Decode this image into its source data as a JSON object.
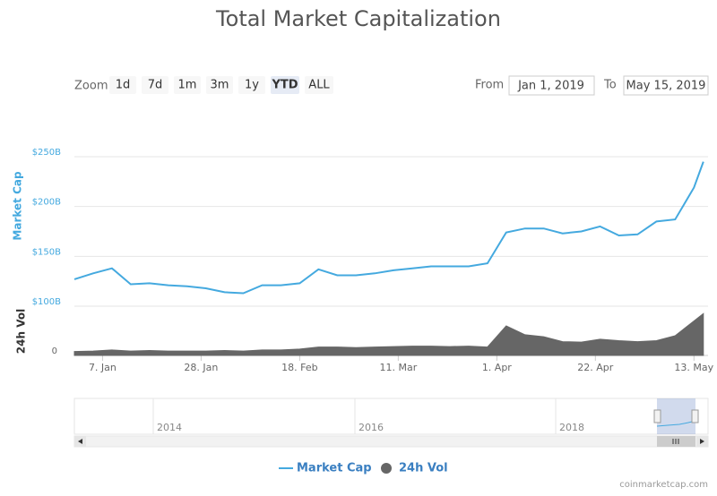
{
  "chart_data": {
    "type": "line",
    "title": "Total Market Capitalization",
    "range_selector": {
      "label": "Zoom",
      "buttons": [
        "1d",
        "7d",
        "1m",
        "3m",
        "1y",
        "YTD",
        "ALL"
      ],
      "selected": 5,
      "from_label": "From",
      "from": "Jan 1, 2019",
      "to_label": "To",
      "to": "May 15, 2019"
    },
    "y_label": "Market Cap",
    "y2_label": "24h Vol",
    "x": [
      "2019-01-01",
      "2019-01-05",
      "2019-01-09",
      "2019-01-13",
      "2019-01-17",
      "2019-01-21",
      "2019-01-25",
      "2019-01-29",
      "2019-02-02",
      "2019-02-06",
      "2019-02-10",
      "2019-02-14",
      "2019-02-18",
      "2019-02-22",
      "2019-02-26",
      "2019-03-02",
      "2019-03-06",
      "2019-03-10",
      "2019-03-14",
      "2019-03-18",
      "2019-03-22",
      "2019-03-26",
      "2019-03-30",
      "2019-04-03",
      "2019-04-07",
      "2019-04-11",
      "2019-04-15",
      "2019-04-19",
      "2019-04-23",
      "2019-04-27",
      "2019-05-01",
      "2019-05-05",
      "2019-05-09",
      "2019-05-13",
      "2019-05-15"
    ],
    "xlim": [
      "2019-01-01",
      "2019-05-16"
    ],
    "xticks": [
      {
        "value": "2019-01-07",
        "label": "7. Jan"
      },
      {
        "value": "2019-01-28",
        "label": "28. Jan"
      },
      {
        "value": "2019-02-18",
        "label": "18. Feb"
      },
      {
        "value": "2019-03-11",
        "label": "11. Mar"
      },
      {
        "value": "2019-04-01",
        "label": "1. Apr"
      },
      {
        "value": "2019-04-22",
        "label": "22. Apr"
      },
      {
        "value": "2019-05-13",
        "label": "13. May"
      }
    ],
    "ylim": [
      100,
      250
    ],
    "yticks": [
      {
        "value": 100,
        "label": "$100B"
      },
      {
        "value": 150,
        "label": "$150B"
      },
      {
        "value": 200,
        "label": "$200B"
      },
      {
        "value": 250,
        "label": "$250B"
      }
    ],
    "y2lim": [
      0,
      100
    ],
    "y2ticks": [
      0
    ],
    "grid": true,
    "series": [
      {
        "name": "Market Cap",
        "type": "line",
        "color": "#44a9df",
        "values": [
          127,
          133,
          138,
          122,
          123,
          121,
          120,
          118,
          114,
          113,
          121,
          121,
          123,
          137,
          131,
          131,
          133,
          136,
          138,
          140,
          140,
          140,
          143,
          174,
          178,
          178,
          173,
          175,
          180,
          171,
          172,
          185,
          187,
          219,
          245
        ]
      },
      {
        "name": "24h Vol",
        "type": "area",
        "axis": "y2",
        "color": "#666666",
        "values": [
          8,
          9,
          11,
          9,
          10,
          9,
          9,
          9,
          10,
          9,
          11,
          11,
          13,
          17,
          17,
          16,
          17,
          18,
          19,
          19,
          18,
          19,
          17,
          60,
          42,
          38,
          28,
          27,
          33,
          30,
          28,
          30,
          40,
          70,
          85
        ]
      }
    ],
    "navigator": {
      "labels": [
        "2014",
        "2016",
        "2018"
      ]
    },
    "credit": "coinmarketcap.com"
  }
}
